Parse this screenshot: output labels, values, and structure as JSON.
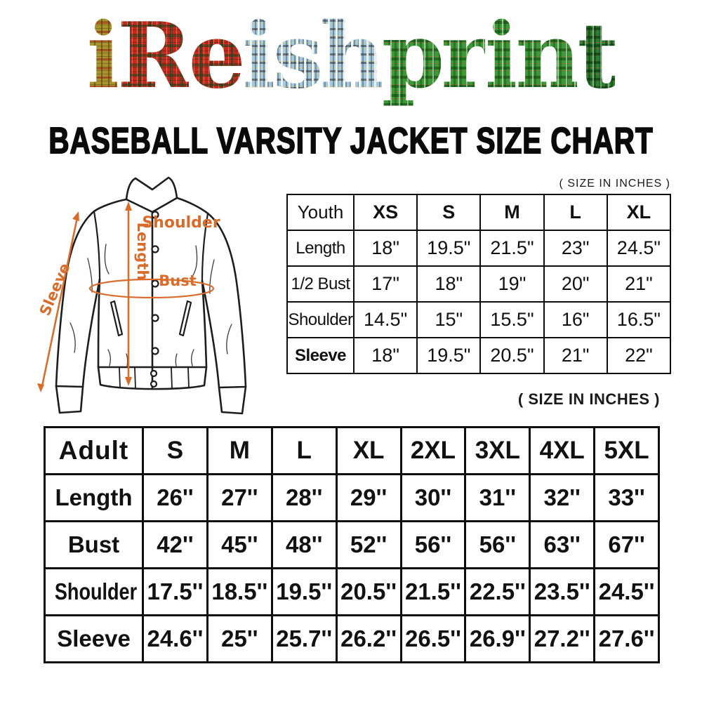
{
  "header": {
    "logo_text": "iReishprint",
    "logo_letters": [
      {
        "ch": "i",
        "pattern": "gold"
      },
      {
        "ch": "R",
        "pattern": "red"
      },
      {
        "ch": "e",
        "pattern": "red"
      },
      {
        "ch": "i",
        "pattern": "blue"
      },
      {
        "ch": "s",
        "pattern": "blue"
      },
      {
        "ch": "h",
        "pattern": "blue"
      },
      {
        "ch": "p",
        "pattern": "green"
      },
      {
        "ch": "r",
        "pattern": "green"
      },
      {
        "ch": "i",
        "pattern": "green"
      },
      {
        "ch": "n",
        "pattern": "green"
      },
      {
        "ch": "t",
        "pattern": "darkgreen"
      }
    ],
    "logo_colors": {
      "gold": "#a9932c",
      "red": "#c52723",
      "blue": "#a2c9de",
      "green": "#3f9837",
      "darkgreen": "#2f7c31"
    },
    "subtitle": "BASEBALL VARSITY JACKET SIZE CHART"
  },
  "jacket_diagram": {
    "labels": {
      "shoulder": "Shoulder",
      "length": "Length",
      "bust": "Bust",
      "sleeve": "Sleeve"
    },
    "annotation_color": "#d96c2b"
  },
  "youth_table": {
    "unit_note": "( SIZE IN INCHES )",
    "columns": [
      "Youth",
      "XS",
      "S",
      "M",
      "L",
      "XL"
    ],
    "rows": [
      {
        "label": "Length",
        "values": [
          "18\"",
          "19.5\"",
          "21.5\"",
          "23\"",
          "24.5\""
        ]
      },
      {
        "label": "1/2 Bust",
        "values": [
          "17\"",
          "18\"",
          "19\"",
          "20\"",
          "21\""
        ]
      },
      {
        "label": "Shoulder",
        "values": [
          "14.5\"",
          "15\"",
          "15.5\"",
          "16\"",
          "16.5\""
        ]
      },
      {
        "label": "Sleeve",
        "values": [
          "18\"",
          "19.5\"",
          "20.5\"",
          "21\"",
          "22\""
        ]
      }
    ]
  },
  "adult_table": {
    "unit_note": "( SIZE IN INCHES )",
    "columns": [
      "Adult",
      "S",
      "M",
      "L",
      "XL",
      "2XL",
      "3XL",
      "4XL",
      "5XL"
    ],
    "rows": [
      {
        "label": "Length",
        "values": [
          "26''",
          "27''",
          "28''",
          "29''",
          "30''",
          "31''",
          "32''",
          "33''"
        ]
      },
      {
        "label": "Bust",
        "values": [
          "42''",
          "45''",
          "48''",
          "52''",
          "56''",
          "56''",
          "63''",
          "67''"
        ]
      },
      {
        "label": "Shoulder",
        "values": [
          "17.5''",
          "18.5''",
          "19.5''",
          "20.5''",
          "21.5''",
          "22.5''",
          "23.5''",
          "24.5''"
        ]
      },
      {
        "label": "Sleeve",
        "values": [
          "24.6''",
          "25''",
          "25.7''",
          "26.2''",
          "26.5''",
          "26.9''",
          "27.2''",
          "27.6''"
        ]
      }
    ]
  }
}
